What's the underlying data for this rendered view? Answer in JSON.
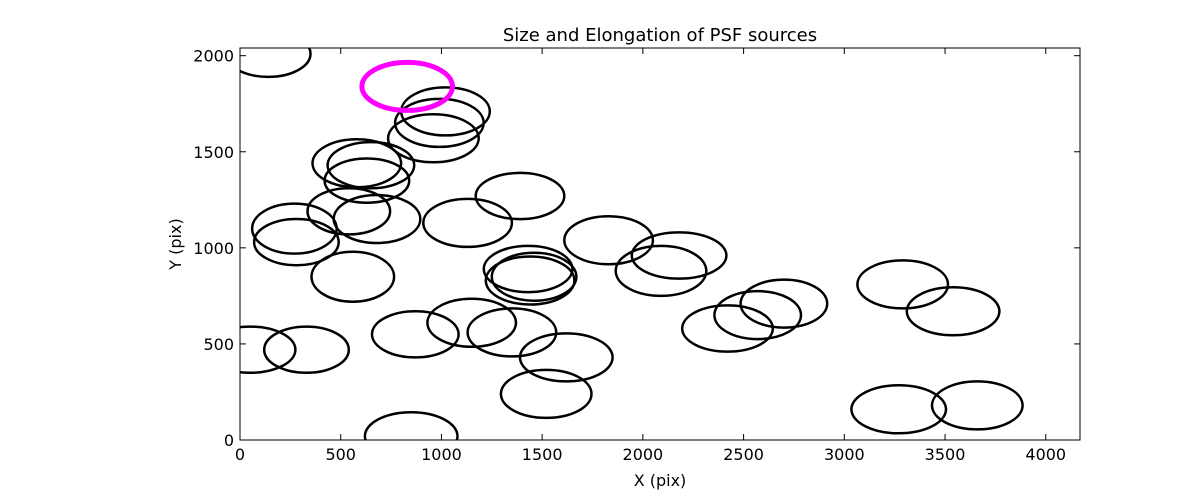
{
  "chart_data": {
    "type": "scatter",
    "title": "Size and Elongation of PSF sources",
    "xlabel": "X (pix)",
    "ylabel": "Y (pix)",
    "xlim": [
      0,
      4170
    ],
    "ylim": [
      0,
      2040
    ],
    "xticks": [
      0,
      500,
      1000,
      1500,
      2000,
      2500,
      3000,
      3500,
      4000
    ],
    "yticks": [
      0,
      500,
      1000,
      1500,
      2000
    ],
    "grid": false,
    "marker": "ellipse outline",
    "colors": {
      "default": "#000000",
      "highlight": "#ff00ff"
    },
    "series": [
      {
        "color": "#000000",
        "points": [
          {
            "x": 140,
            "y": 2010,
            "w": 420,
            "h": 240
          },
          {
            "x": 270,
            "y": 1100,
            "w": 420,
            "h": 260
          },
          {
            "x": 280,
            "y": 1030,
            "w": 420,
            "h": 240
          },
          {
            "x": 50,
            "y": 470,
            "w": 450,
            "h": 240
          },
          {
            "x": 330,
            "y": 470,
            "w": 420,
            "h": 240
          },
          {
            "x": 560,
            "y": 850,
            "w": 410,
            "h": 260
          },
          {
            "x": 540,
            "y": 1190,
            "w": 410,
            "h": 240
          },
          {
            "x": 680,
            "y": 1150,
            "w": 430,
            "h": 250
          },
          {
            "x": 580,
            "y": 1440,
            "w": 440,
            "h": 250
          },
          {
            "x": 650,
            "y": 1430,
            "w": 430,
            "h": 240
          },
          {
            "x": 630,
            "y": 1350,
            "w": 420,
            "h": 230
          },
          {
            "x": 870,
            "y": 550,
            "w": 430,
            "h": 240
          },
          {
            "x": 960,
            "y": 1570,
            "w": 450,
            "h": 250
          },
          {
            "x": 990,
            "y": 1650,
            "w": 440,
            "h": 250
          },
          {
            "x": 1020,
            "y": 1710,
            "w": 440,
            "h": 250
          },
          {
            "x": 1130,
            "y": 1130,
            "w": 440,
            "h": 250
          },
          {
            "x": 1150,
            "y": 610,
            "w": 440,
            "h": 250
          },
          {
            "x": 1390,
            "y": 1270,
            "w": 440,
            "h": 240
          },
          {
            "x": 1440,
            "y": 830,
            "w": 440,
            "h": 250
          },
          {
            "x": 1460,
            "y": 850,
            "w": 420,
            "h": 250
          },
          {
            "x": 1430,
            "y": 890,
            "w": 440,
            "h": 240
          },
          {
            "x": 1350,
            "y": 560,
            "w": 440,
            "h": 250
          },
          {
            "x": 1620,
            "y": 430,
            "w": 460,
            "h": 250
          },
          {
            "x": 1520,
            "y": 240,
            "w": 450,
            "h": 250
          },
          {
            "x": 850,
            "y": 20,
            "w": 460,
            "h": 250
          },
          {
            "x": 1830,
            "y": 1040,
            "w": 440,
            "h": 250
          },
          {
            "x": 2090,
            "y": 880,
            "w": 450,
            "h": 260
          },
          {
            "x": 2180,
            "y": 960,
            "w": 470,
            "h": 240
          },
          {
            "x": 2420,
            "y": 580,
            "w": 450,
            "h": 240
          },
          {
            "x": 2570,
            "y": 650,
            "w": 430,
            "h": 250
          },
          {
            "x": 2700,
            "y": 710,
            "w": 430,
            "h": 250
          },
          {
            "x": 3290,
            "y": 810,
            "w": 450,
            "h": 250
          },
          {
            "x": 3540,
            "y": 670,
            "w": 460,
            "h": 250
          },
          {
            "x": 3270,
            "y": 160,
            "w": 470,
            "h": 250
          },
          {
            "x": 3660,
            "y": 180,
            "w": 450,
            "h": 250
          }
        ]
      },
      {
        "color": "#ff00ff",
        "points": [
          {
            "x": 830,
            "y": 1840,
            "w": 450,
            "h": 250
          }
        ]
      }
    ]
  }
}
